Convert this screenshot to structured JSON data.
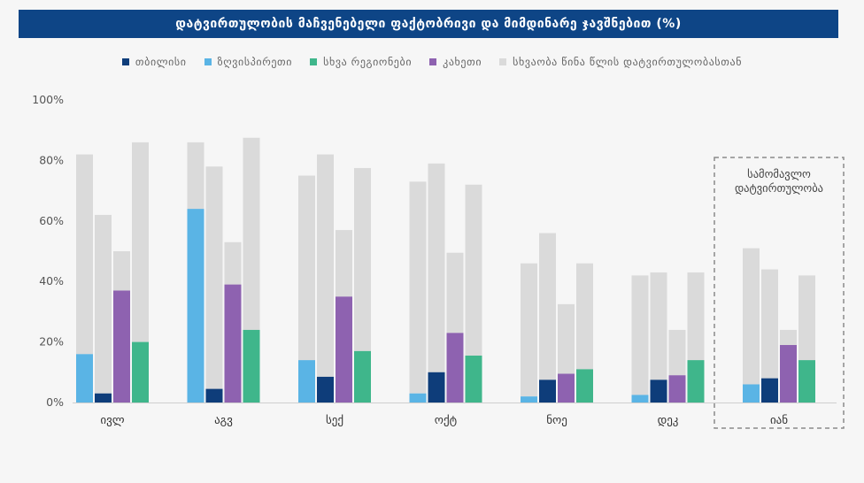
{
  "chart_data": {
    "type": "bar",
    "title": "დატვირთულობის მაჩვენებელი ფაქტობრივი და მიმდინარე ჯავშნებით (%)",
    "categories": [
      "ივლ",
      "აგვ",
      "სექ",
      "ოქტ",
      "ნოე",
      "დეკ",
      "იან"
    ],
    "series": [
      {
        "name": "ზღვისპირეთი",
        "color": "#5ab4e5",
        "values": [
          16,
          64,
          14,
          3,
          2,
          2.5,
          6
        ]
      },
      {
        "name": "თბილისი",
        "color": "#0e3d7a",
        "values": [
          3,
          4.5,
          8.5,
          10,
          7.5,
          7.5,
          8
        ]
      },
      {
        "name": "კახეთი",
        "color": "#8e62b0",
        "values": [
          37,
          39,
          35,
          23,
          9.5,
          9,
          19
        ]
      },
      {
        "name": "სხვა რეგიონები",
        "color": "#3fb68b",
        "values": [
          20,
          24,
          17,
          15.5,
          11,
          14,
          14
        ]
      }
    ],
    "comparison": {
      "name": "სხვაობა წინა წლის დატვირთულობასთან",
      "color": "#dadada",
      "totals": [
        [
          82,
          62,
          50,
          86
        ],
        [
          86,
          78,
          53,
          87.5
        ],
        [
          75,
          82,
          57,
          77.5
        ],
        [
          73,
          79,
          49.5,
          72
        ],
        [
          46,
          56,
          32.5,
          46
        ],
        [
          42,
          43,
          24,
          43
        ],
        [
          51,
          44,
          24,
          42
        ]
      ]
    },
    "yticks": [
      "0%",
      "20%",
      "40%",
      "60%",
      "80%",
      "100%"
    ],
    "ylim": [
      0,
      100
    ],
    "projected_label_line1": "სამომავლო",
    "projected_label_line2": "დატვირთულობა"
  },
  "legend": [
    {
      "label": "თბილისი",
      "color": "#0e3d7a"
    },
    {
      "label": "ზღვისპირეთი",
      "color": "#5ab4e5"
    },
    {
      "label": "სხვა რეგიონები",
      "color": "#3fb68b"
    },
    {
      "label": "კახეთი",
      "color": "#8e62b0"
    },
    {
      "label": "სხვაობა წინა წლის დატვირთულობასთან",
      "color": "#dadada"
    }
  ]
}
